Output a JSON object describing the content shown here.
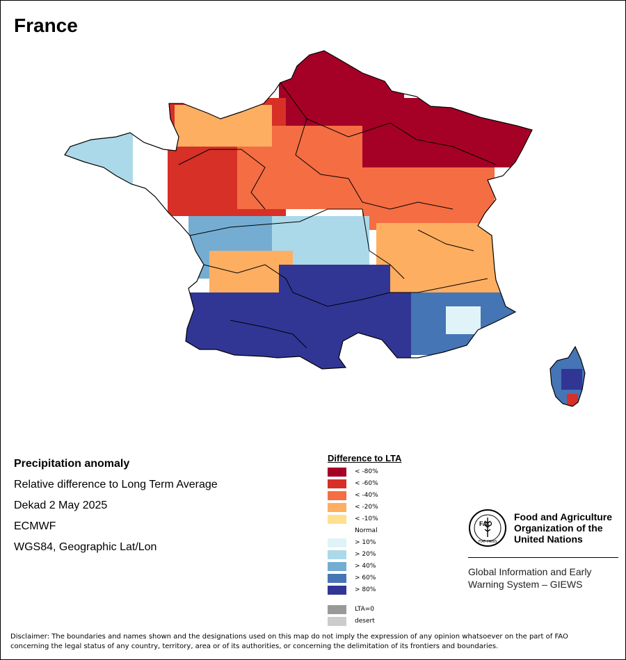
{
  "map": {
    "title": "France",
    "layer_colors": {
      "lt80": "#a50026",
      "lt60": "#d73027",
      "lt40": "#f46d43",
      "lt20": "#fdae61",
      "lt10": "#fee090",
      "normal": "#ffffff",
      "gt10": "#e0f3f8",
      "gt20": "#abd9e9",
      "gt40": "#74add1",
      "gt60": "#4575b4",
      "gt80": "#313695",
      "lta0": "#999999",
      "desert": "#cccccc"
    }
  },
  "info": {
    "line1": "Precipitation anomaly",
    "line2": "Relative difference to Long Term Average",
    "line3": "Dekad 2 May 2025",
    "line4": "ECMWF",
    "line5": "WGS84, Geographic Lat/Lon"
  },
  "legend": {
    "title": "Difference to LTA",
    "items": [
      {
        "label": "< -80%",
        "color": "#a50026"
      },
      {
        "label": "< -60%",
        "color": "#d73027"
      },
      {
        "label": "< -40%",
        "color": "#f46d43"
      },
      {
        "label": "< -20%",
        "color": "#fdae61"
      },
      {
        "label": "< -10%",
        "color": "#fee090"
      },
      {
        "label": "Normal",
        "color": "#ffffff"
      },
      {
        "label": "> 10%",
        "color": "#e0f3f8"
      },
      {
        "label": "> 20%",
        "color": "#abd9e9"
      },
      {
        "label": "> 40%",
        "color": "#74add1"
      },
      {
        "label": "> 60%",
        "color": "#4575b4"
      },
      {
        "label": "> 80%",
        "color": "#313695"
      },
      {
        "label": "LTA=0",
        "color": "#999999"
      },
      {
        "label": "desert",
        "color": "#cccccc"
      }
    ]
  },
  "org": {
    "logo_icon": "fao-emblem-icon",
    "logo_text": "FAO",
    "logo_motto": "FIAT PANIS",
    "name_line1": "Food and Agriculture",
    "name_line2": "Organization of the",
    "name_line3": "United Nations",
    "system_line1": "Global Information and Early",
    "system_line2": "Warning System – GIEWS"
  },
  "disclaimer": {
    "line1": "Disclaimer: The boundaries and names shown and the designations used on this map do not imply the expression of any opinion whatsoever on the part of FAO",
    "line2": "concerning the legal status of any country, territory, area or of its authorities, or concerning the delimitation of its frontiers and boundaries."
  }
}
